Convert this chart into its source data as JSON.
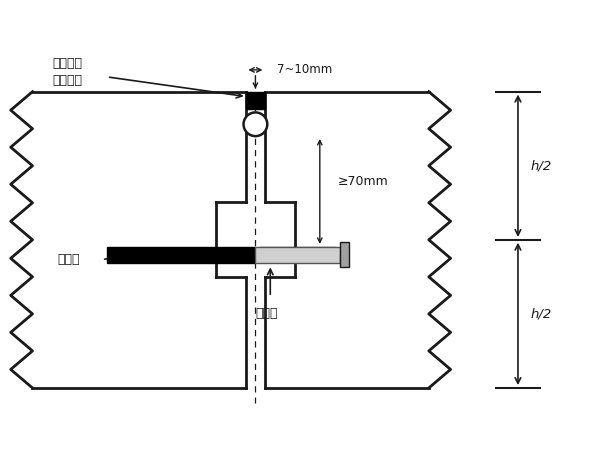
{
  "bg_color": "#ffffff",
  "line_color": "#1a1a1a",
  "label_guanjian": "灌填缝料\n背衬幌条",
  "label_7_10": "7~10mm",
  "label_70": "≥70mm",
  "label_tuliaqing": "涂氥青",
  "label_chuanligang": "传力杆",
  "label_h2_top": "h/2",
  "label_h2_bot": "h/2"
}
